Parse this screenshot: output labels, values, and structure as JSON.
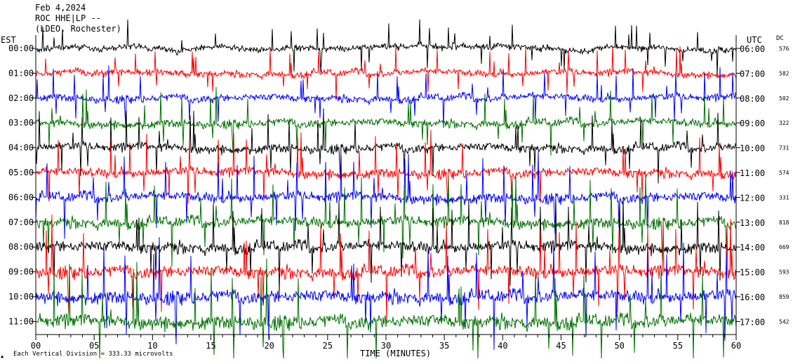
{
  "header": {
    "date": "Feb 4,2024",
    "station": "ROC HHE|LP --",
    "network": "(LDEO, Rochester)"
  },
  "labels": {
    "left_tz": "EST",
    "right_tz": "UTC",
    "dc": "DC",
    "xlabel": "TIME (MINUTES)",
    "scale_note": "Each Vertical Division =  333.33 microvolts"
  },
  "colors": {
    "trace_cycle": [
      "#000000",
      "#ff0000",
      "#0000ff",
      "#007000"
    ],
    "axis": "#000000",
    "background": "#ffffff"
  },
  "chart_data": {
    "type": "line",
    "title": "Feb 4,2024",
    "xlabel": "TIME (MINUTES)",
    "ylabel": "",
    "xlim": [
      0,
      60
    ],
    "x_ticks": [
      "00",
      "05",
      "10",
      "15",
      "20",
      "25",
      "30",
      "35",
      "40",
      "45",
      "50",
      "55",
      "60"
    ],
    "grid": false,
    "series": [
      {
        "est": "00:00",
        "utc": "06:00",
        "dc": "576"
      },
      {
        "est": "01:00",
        "utc": "07:00",
        "dc": "582"
      },
      {
        "est": "02:00",
        "utc": "08:00",
        "dc": "502"
      },
      {
        "est": "03:00",
        "utc": "09:00",
        "dc": "322"
      },
      {
        "est": "04:00",
        "utc": "10:00",
        "dc": "731"
      },
      {
        "est": "05:00",
        "utc": "11:00",
        "dc": "574"
      },
      {
        "est": "06:00",
        "utc": "12:00",
        "dc": "331"
      },
      {
        "est": "07:00",
        "utc": "13:00",
        "dc": "818"
      },
      {
        "est": "08:00",
        "utc": "14:00",
        "dc": "669"
      },
      {
        "est": "09:00",
        "utc": "15:00",
        "dc": "593"
      },
      {
        "est": "10:00",
        "utc": "16:00",
        "dc": "859"
      },
      {
        "est": "11:00",
        "utc": "17:00",
        "dc": "542"
      }
    ]
  }
}
